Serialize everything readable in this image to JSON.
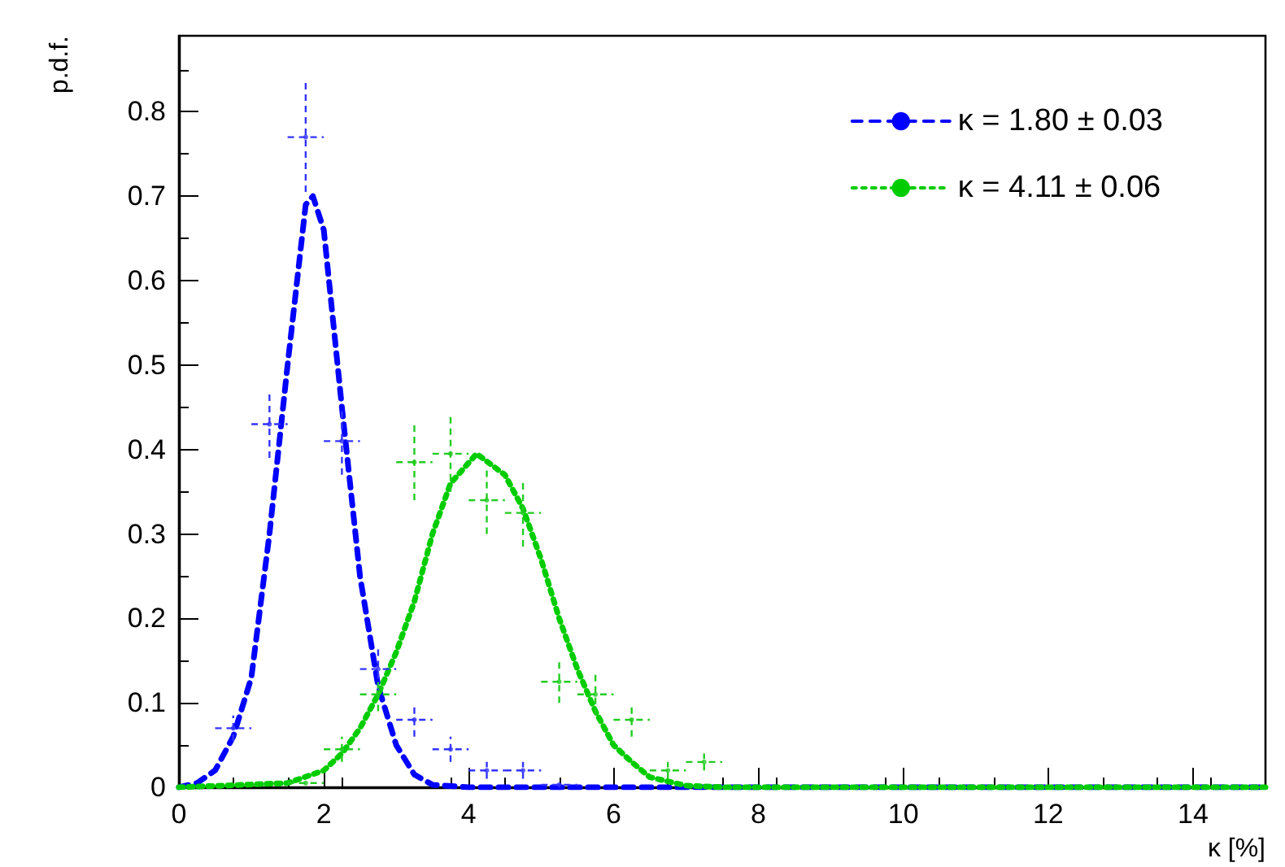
{
  "chart_data": {
    "type": "line",
    "xlabel": "κ [%]",
    "ylabel": "p.d.f.",
    "xlim": [
      0,
      15
    ],
    "xticks": [
      0,
      2,
      4,
      6,
      8,
      10,
      12,
      14
    ],
    "ylim": [
      0,
      0.89
    ],
    "yticks": [
      0,
      0.1,
      0.2,
      0.3,
      0.4,
      0.5,
      0.6,
      0.7,
      0.8
    ],
    "grid": false,
    "legend": "top right",
    "series": [
      {
        "type": "scatter",
        "color": "#3333ff",
        "x": [
          0.75,
          1.25,
          1.75,
          2.25,
          2.75,
          3.25,
          3.75,
          4.25,
          4.75,
          5.25
        ],
        "values": [
          0.07,
          0.43,
          0.77,
          0.41,
          0.14,
          0.08,
          0.045,
          0.02,
          0.02,
          0.003
        ],
        "errors": [
          0.015,
          0.04,
          0.065,
          0.04,
          0.025,
          0.02,
          0.015,
          0.01,
          0.01,
          null
        ],
        "xerrors": [
          0.25,
          0.25,
          0.25,
          0.25,
          0.25,
          0.25,
          0.25,
          0.25,
          0.25,
          0.25
        ]
      },
      {
        "type": "scatter",
        "color": "#22cc22",
        "x": [
          1.75,
          2.25,
          2.75,
          3.25,
          3.75,
          4.25,
          4.75,
          5.25,
          5.75,
          6.25,
          6.75,
          7.25
        ],
        "values": [
          0.005,
          0.045,
          0.11,
          0.385,
          0.395,
          0.34,
          0.325,
          0.125,
          0.11,
          0.08,
          0.02,
          0.03
        ],
        "errors": [
          null,
          0.015,
          0.02,
          0.045,
          0.045,
          0.04,
          0.04,
          0.025,
          0.025,
          0.02,
          0.01,
          0.01
        ],
        "xerrors": [
          0.25,
          0.25,
          0.25,
          0.25,
          0.25,
          0.25,
          0.25,
          0.25,
          0.25,
          0.25,
          0.25,
          0.25
        ]
      },
      {
        "name": "κ = 1.80 ± 0.03",
        "color": "#0000ff",
        "line_style": "dashed",
        "x": [
          0,
          0.25,
          0.5,
          0.75,
          1,
          1.25,
          1.5,
          1.75,
          1.85,
          2,
          2.25,
          2.5,
          2.75,
          3,
          3.25,
          3.5,
          4,
          15
        ],
        "values": [
          0,
          0.005,
          0.02,
          0.06,
          0.13,
          0.3,
          0.5,
          0.69,
          0.7,
          0.66,
          0.45,
          0.25,
          0.12,
          0.05,
          0.015,
          0.003,
          0,
          0
        ]
      },
      {
        "name": "κ = 4.11 ± 0.06",
        "color": "#00cc00",
        "line_style": "dotted",
        "x": [
          0,
          1.5,
          2,
          2.25,
          2.5,
          2.75,
          3,
          3.25,
          3.5,
          3.75,
          4.11,
          4.5,
          4.75,
          5,
          5.25,
          5.5,
          5.75,
          6,
          6.25,
          6.5,
          7,
          7.5,
          15
        ],
        "values": [
          0,
          0.005,
          0.02,
          0.04,
          0.07,
          0.11,
          0.16,
          0.22,
          0.3,
          0.36,
          0.395,
          0.37,
          0.33,
          0.27,
          0.2,
          0.14,
          0.09,
          0.05,
          0.03,
          0.012,
          0.002,
          0,
          0
        ]
      }
    ]
  }
}
